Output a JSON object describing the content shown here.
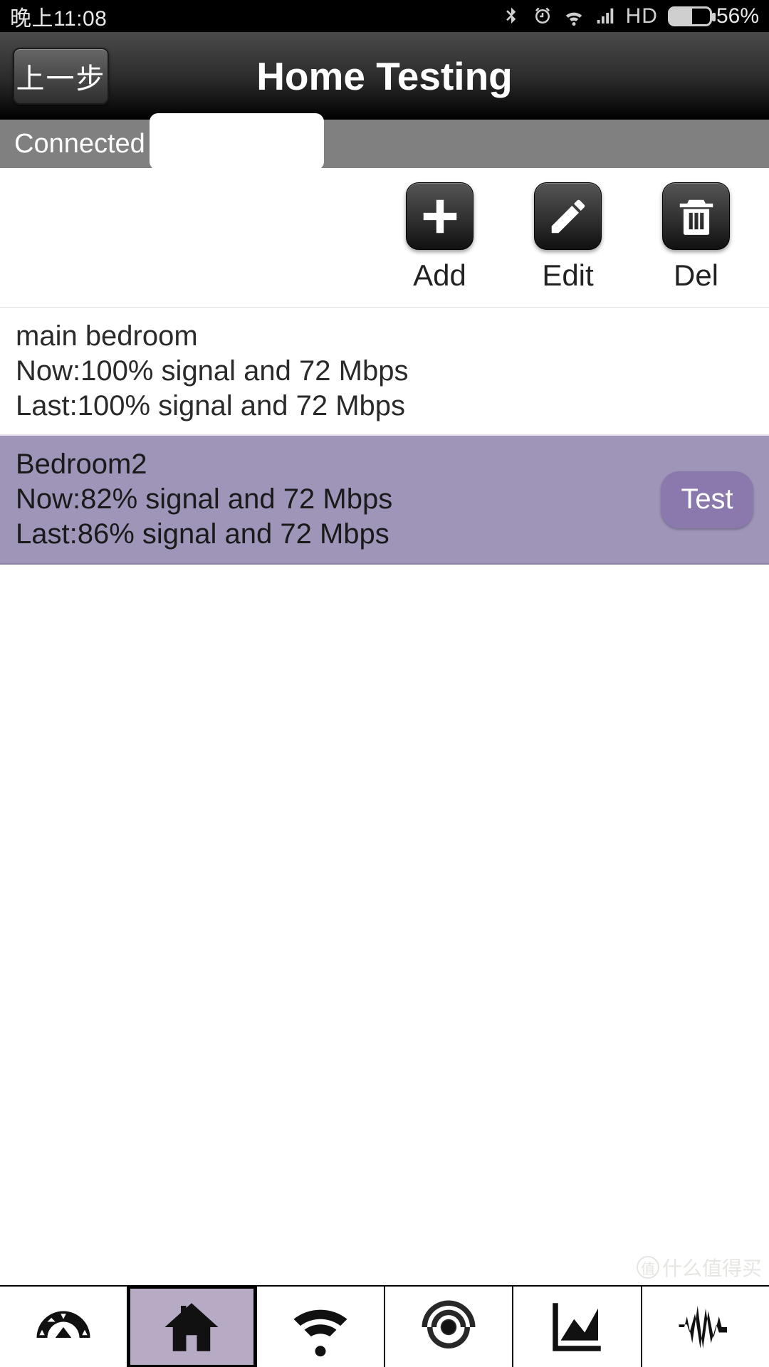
{
  "status": {
    "time": "晚上11:08",
    "hd": "HD",
    "battery_percent": "56%",
    "battery_fill_pct": 56
  },
  "header": {
    "back_label": "上一步",
    "title": "Home Testing"
  },
  "connected": {
    "prefix": "Connected to :"
  },
  "actions": {
    "add": "Add",
    "edit": "Edit",
    "del": "Del"
  },
  "rooms": [
    {
      "name": "main bedroom",
      "now": "Now:100% signal and 72 Mbps",
      "last": "Last:100% signal and 72 Mbps",
      "selected": false
    },
    {
      "name": "Bedroom2",
      "now": "Now:82% signal and 72 Mbps",
      "last": "Last:86% signal and 72 Mbps",
      "selected": true,
      "test_label": "Test"
    }
  ],
  "watermark": "什么值得买",
  "watermark_badge": "值",
  "colors": {
    "selected_row": "#9e95b9",
    "test_button": "#8b78ac",
    "nav_active": "#b7aac5"
  }
}
